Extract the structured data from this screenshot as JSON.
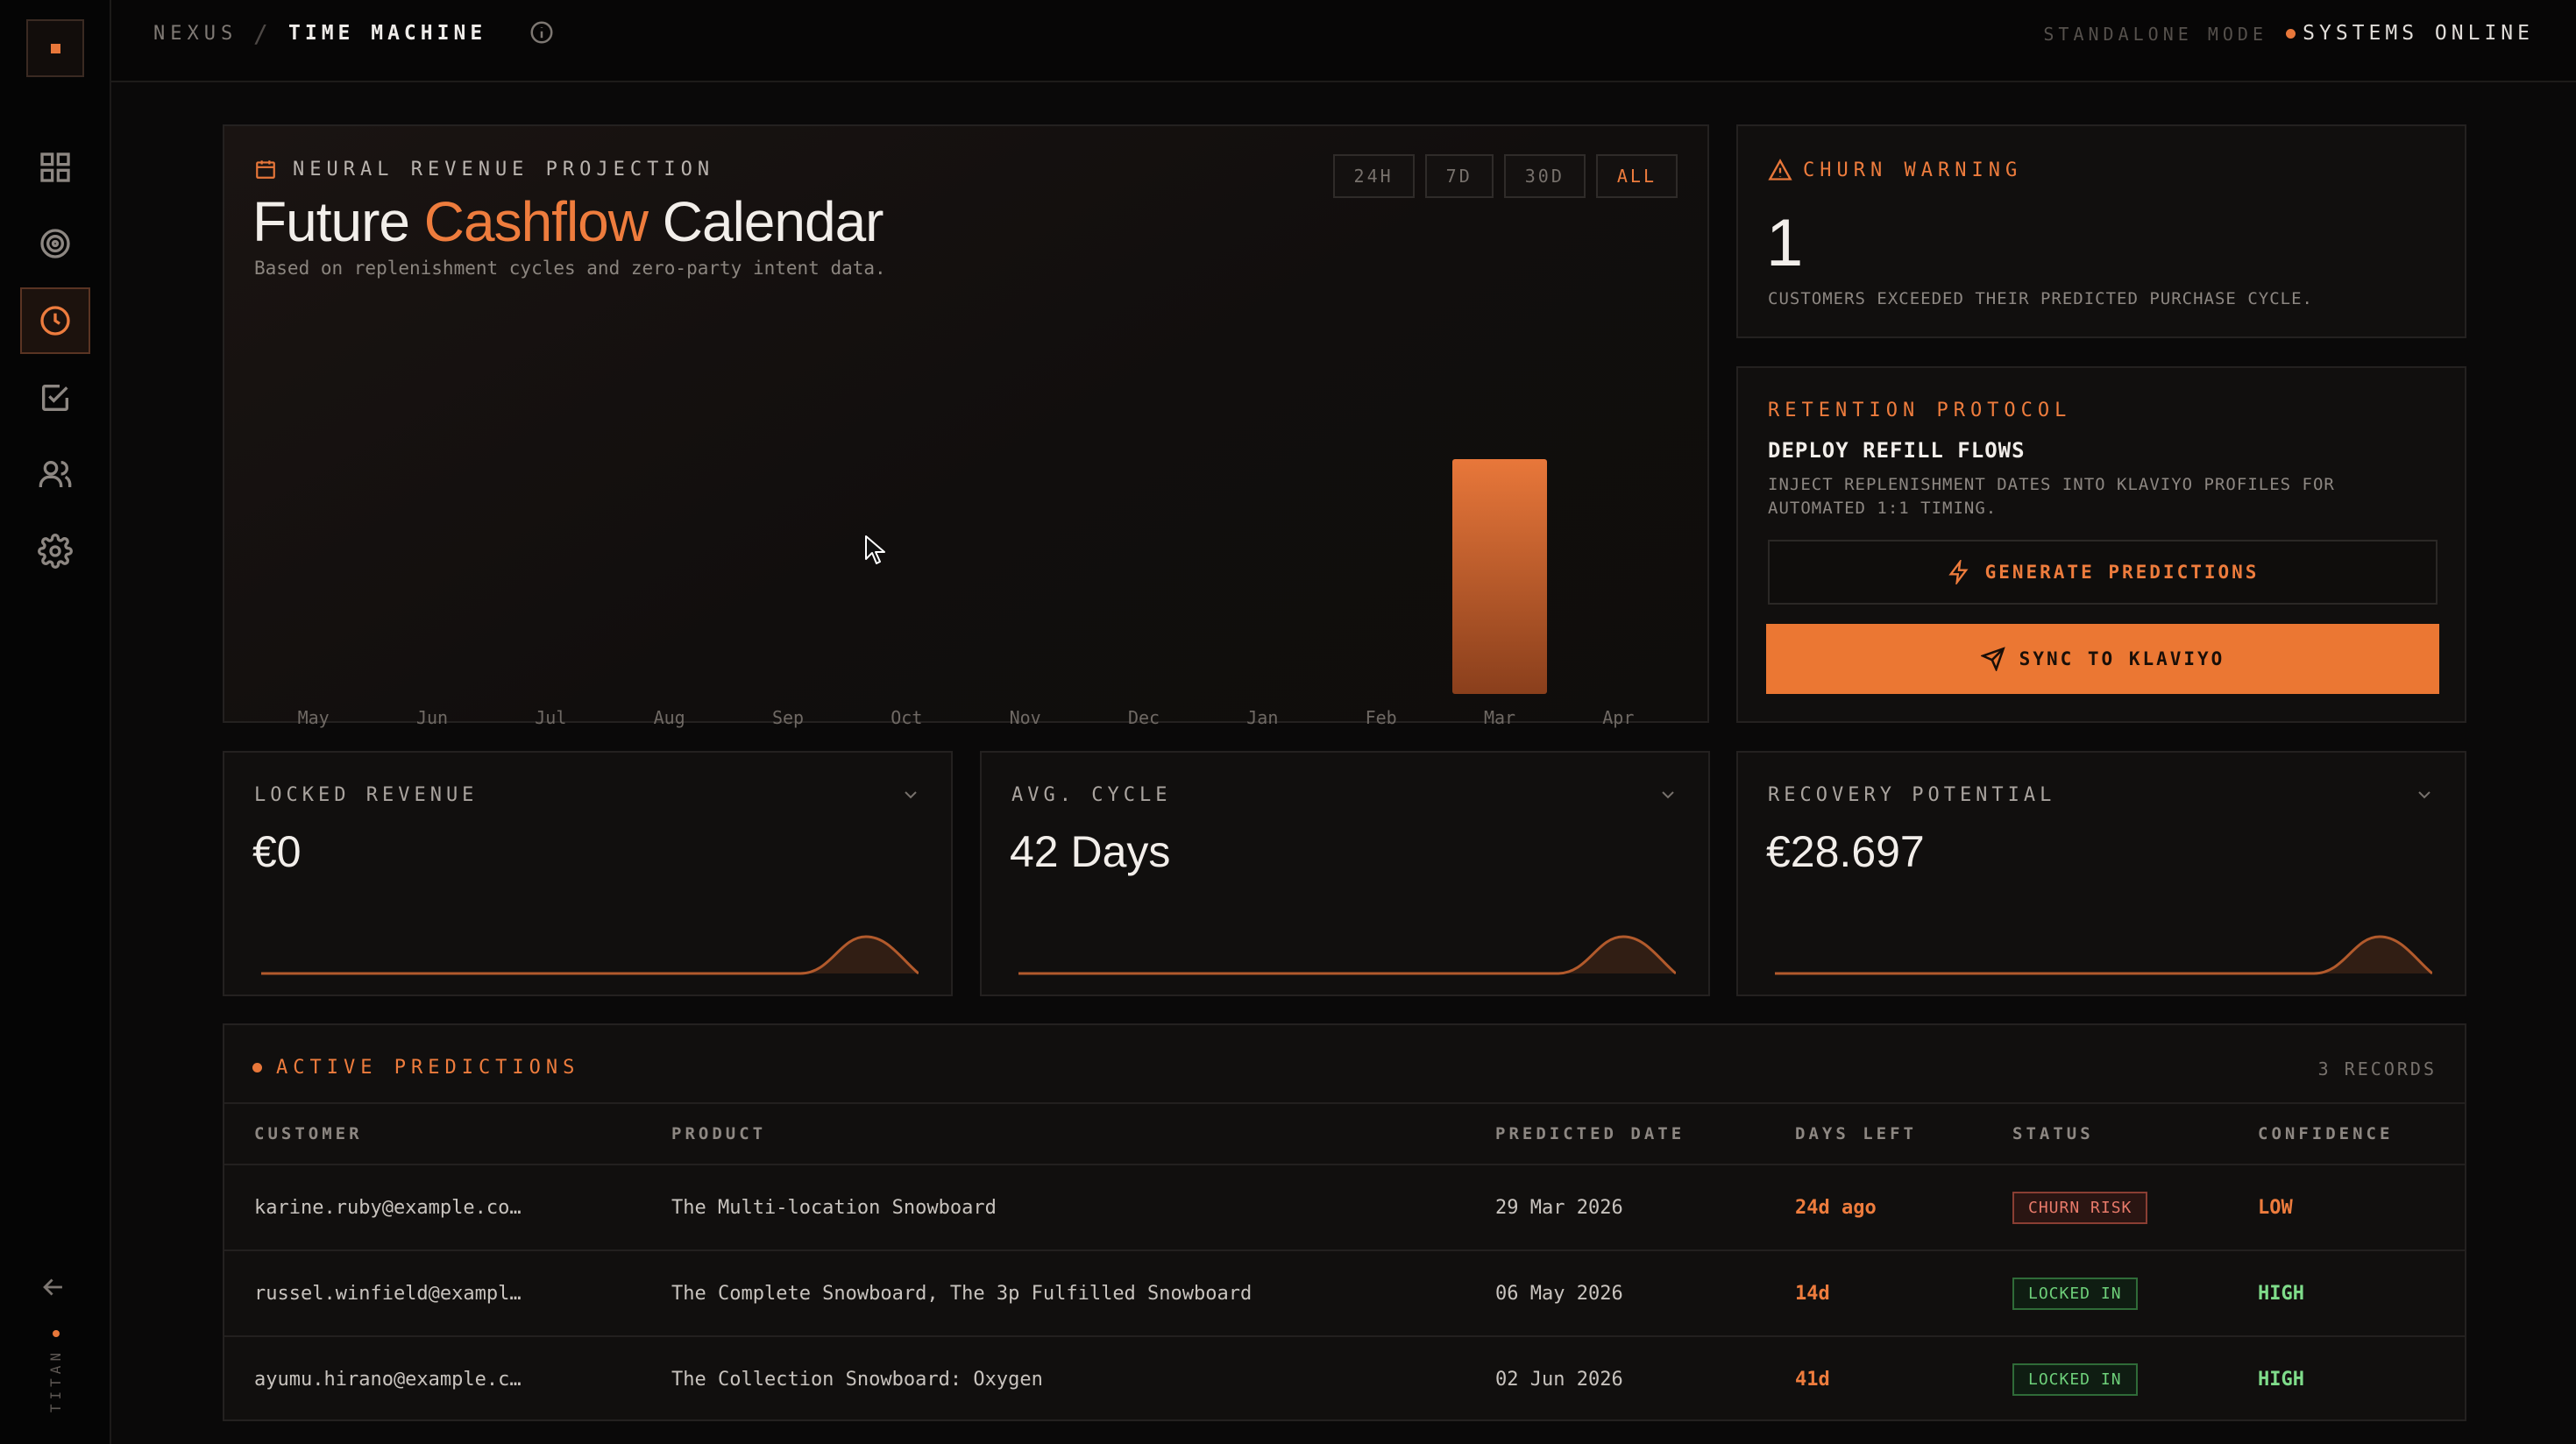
{
  "sidebar": {
    "nav": [
      {
        "icon": "grid-icon",
        "active": false
      },
      {
        "icon": "target-icon",
        "active": false
      },
      {
        "icon": "clock-icon",
        "active": true
      },
      {
        "icon": "checkbox-icon",
        "active": false
      },
      {
        "icon": "users-icon",
        "active": false
      },
      {
        "icon": "gear-icon",
        "active": false
      }
    ],
    "brand": "TITAN"
  },
  "topbar": {
    "root": "NEXUS",
    "separator": "/",
    "page": "TIME MACHINE",
    "mode": "STANDALONE MODE",
    "status": "SYSTEMS ONLINE"
  },
  "projection": {
    "eyebrow": "NEURAL REVENUE PROJECTION",
    "title_pre": "Future",
    "title_accent": "Cashflow",
    "title_post": "Calendar",
    "subtitle": "Based on replenishment cycles and zero-party intent data.",
    "ranges": [
      "24H",
      "7D",
      "30D",
      "ALL"
    ],
    "active_range": "ALL"
  },
  "chart_data": {
    "type": "bar",
    "categories": [
      "May",
      "Jun",
      "Jul",
      "Aug",
      "Sep",
      "Oct",
      "Nov",
      "Dec",
      "Jan",
      "Feb",
      "Mar",
      "Apr"
    ],
    "values": [
      0,
      0,
      0,
      0,
      0,
      0,
      0,
      0,
      0,
      0,
      1,
      0
    ],
    "title": "",
    "xlabel": "",
    "ylabel": "",
    "grid": false,
    "bar_color": "#e8773a"
  },
  "churn": {
    "eyebrow": "CHURN WARNING",
    "value": "1",
    "description": "CUSTOMERS EXCEEDED THEIR PREDICTED PURCHASE CYCLE."
  },
  "retention": {
    "eyebrow": "RETENTION PROTOCOL",
    "title": "DEPLOY REFILL FLOWS",
    "description": "INJECT REPLENISHMENT DATES INTO KLAVIYO PROFILES FOR AUTOMATED 1:1 TIMING.",
    "generate_label": "GENERATE PREDICTIONS",
    "sync_label": "SYNC TO KLAVIYO"
  },
  "kpis": [
    {
      "label": "LOCKED REVENUE",
      "value": "€0"
    },
    {
      "label": "AVG. CYCLE",
      "value": "42 Days"
    },
    {
      "label": "RECOVERY POTENTIAL",
      "value": "€28.697"
    }
  ],
  "table": {
    "title": "ACTIVE PREDICTIONS",
    "count": "3 RECORDS",
    "columns": [
      "CUSTOMER",
      "PRODUCT",
      "PREDICTED DATE",
      "DAYS LEFT",
      "STATUS",
      "CONFIDENCE"
    ],
    "rows": [
      {
        "customer": "karine.ruby@example.co…",
        "product": "The Multi-location Snowboard",
        "date": "29 Mar 2026",
        "days": "24d ago",
        "status": "CHURN RISK",
        "confidence": "LOW"
      },
      {
        "customer": "russel.winfield@exampl…",
        "product": "The Complete Snowboard, The 3p Fulfilled Snowboard",
        "date": "06 May 2026",
        "days": "14d",
        "status": "LOCKED IN",
        "confidence": "HIGH"
      },
      {
        "customer": "ayumu.hirano@example.c…",
        "product": "The Collection Snowboard: Oxygen",
        "date": "02 Jun 2026",
        "days": "41d",
        "status": "LOCKED IN",
        "confidence": "HIGH"
      }
    ]
  },
  "colors": {
    "accent": "#e8773a",
    "success": "#7fdc8a",
    "danger": "#e87a6a",
    "background": "#0a0909"
  }
}
